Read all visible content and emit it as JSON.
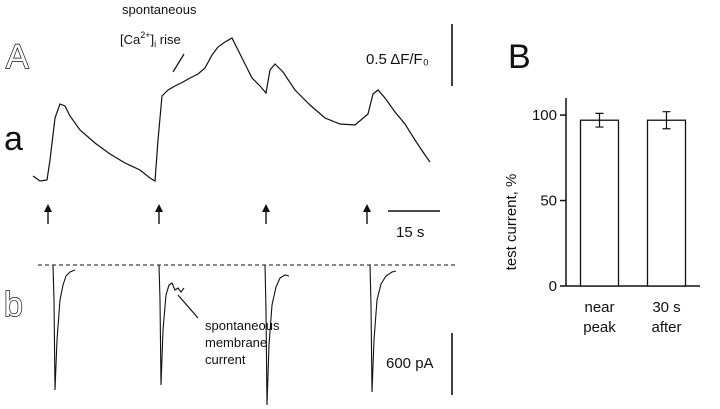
{
  "panel_a": {
    "letter": "A",
    "trace_a_letter": "a",
    "trace_b_letter": "b",
    "annotation_top": {
      "line1": "spontaneous",
      "line2_prefix": "[Ca",
      "line2_sup": "2+",
      "line2_sub": "i",
      "line2_suffix": " rise"
    },
    "annotation_bottom": {
      "line1": "spontaneous",
      "line2": "membrane",
      "line3": "current"
    },
    "scale_fluor": "0.5 ΔF/F₀",
    "scale_time": "15 s",
    "scale_current": "600 pA",
    "arrow_count": 4
  },
  "panel_b": {
    "letter": "B"
  },
  "chart_data": [
    {
      "type": "line",
      "series": [
        {
          "values_description_free": true
        }
      ]
    },
    {
      "type": "bar",
      "categories": [
        "near peak",
        "30 s after"
      ],
      "category_lines": [
        [
          "near",
          "peak"
        ],
        [
          "30 s",
          "after"
        ]
      ],
      "values": [
        97,
        97
      ],
      "errors": [
        4,
        5
      ],
      "ylabel": "test current, %",
      "ylim": [
        0,
        110
      ],
      "yticks": [
        0,
        50,
        100
      ],
      "grid": false
    }
  ],
  "colors": {
    "ink": "#111111",
    "background": "#ffffff"
  }
}
